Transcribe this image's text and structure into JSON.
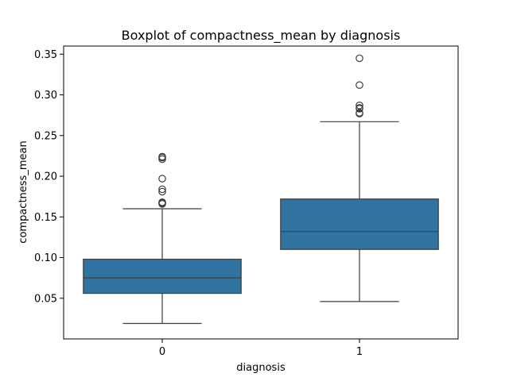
{
  "chart_data": {
    "type": "box",
    "title": "Boxplot of compactness_mean by diagnosis",
    "xlabel": "diagnosis",
    "ylabel": "compactness_mean",
    "categories": [
      "0",
      "1"
    ],
    "ylim": [
      0.0,
      0.36
    ],
    "yticks": [
      0.05,
      0.1,
      0.15,
      0.2,
      0.25,
      0.3,
      0.35
    ],
    "ytick_labels": [
      "0.05",
      "0.10",
      "0.15",
      "0.20",
      "0.25",
      "0.30",
      "0.35"
    ],
    "box_color": "#3274a1",
    "line_color": "#3d3d3d",
    "grid": false,
    "boxes": [
      {
        "category": "0",
        "whisker_low": 0.019,
        "q1": 0.056,
        "median": 0.075,
        "q3": 0.098,
        "whisker_high": 0.16,
        "outliers": [
          0.166,
          0.167,
          0.168,
          0.181,
          0.184,
          0.197,
          0.221,
          0.223,
          0.224
        ]
      },
      {
        "category": "1",
        "whisker_low": 0.046,
        "q1": 0.11,
        "median": 0.132,
        "q3": 0.172,
        "whisker_high": 0.267,
        "outliers": [
          0.277,
          0.278,
          0.283,
          0.284,
          0.287,
          0.312,
          0.345
        ]
      }
    ]
  }
}
